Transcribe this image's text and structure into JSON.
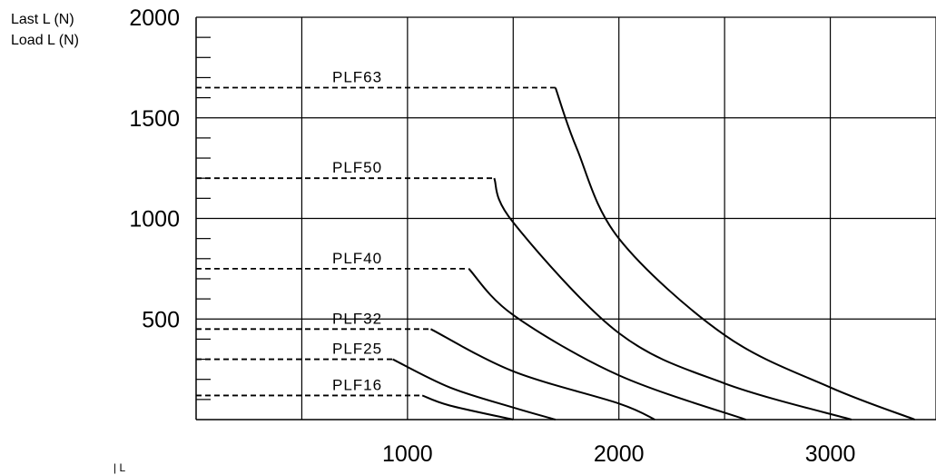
{
  "chart_data": {
    "type": "line",
    "ylabel_lines": [
      "Last L (N)",
      "Load L (N)"
    ],
    "xlabel": "| L",
    "xlim": [
      0,
      3500
    ],
    "ylim": [
      0,
      2000
    ],
    "x_ticks": [
      1000,
      2000,
      3000
    ],
    "y_ticks": [
      500,
      1000,
      1500,
      2000
    ],
    "x_grid": [
      500,
      1000,
      1500,
      2000,
      2500,
      3000,
      3500
    ],
    "y_grid": [
      500,
      1000,
      1500,
      2000
    ],
    "y_minor_step": 100,
    "grid": true,
    "series": [
      {
        "name": "PLF63",
        "plateau": 1650,
        "curve": [
          [
            1700,
            1650
          ],
          [
            1800,
            1350
          ],
          [
            2000,
            900
          ],
          [
            2500,
            420
          ],
          [
            3000,
            160
          ],
          [
            3400,
            0
          ]
        ]
      },
      {
        "name": "PLF50",
        "plateau": 1200,
        "curve": [
          [
            1410,
            1200
          ],
          [
            1500,
            980
          ],
          [
            2000,
            430
          ],
          [
            2500,
            180
          ],
          [
            3100,
            0
          ]
        ]
      },
      {
        "name": "PLF40",
        "plateau": 750,
        "curve": [
          [
            1290,
            750
          ],
          [
            1500,
            520
          ],
          [
            2000,
            220
          ],
          [
            2600,
            0
          ]
        ]
      },
      {
        "name": "PLF32",
        "plateau": 450,
        "curve": [
          [
            1110,
            450
          ],
          [
            1500,
            240
          ],
          [
            2000,
            80
          ],
          [
            2170,
            0
          ]
        ]
      },
      {
        "name": "PLF25",
        "plateau": 300,
        "curve": [
          [
            930,
            300
          ],
          [
            1200,
            160
          ],
          [
            1500,
            60
          ],
          [
            1700,
            0
          ]
        ]
      },
      {
        "name": "PLF16",
        "plateau": 120,
        "curve": [
          [
            1070,
            120
          ],
          [
            1200,
            70
          ],
          [
            1500,
            0
          ]
        ]
      }
    ]
  }
}
